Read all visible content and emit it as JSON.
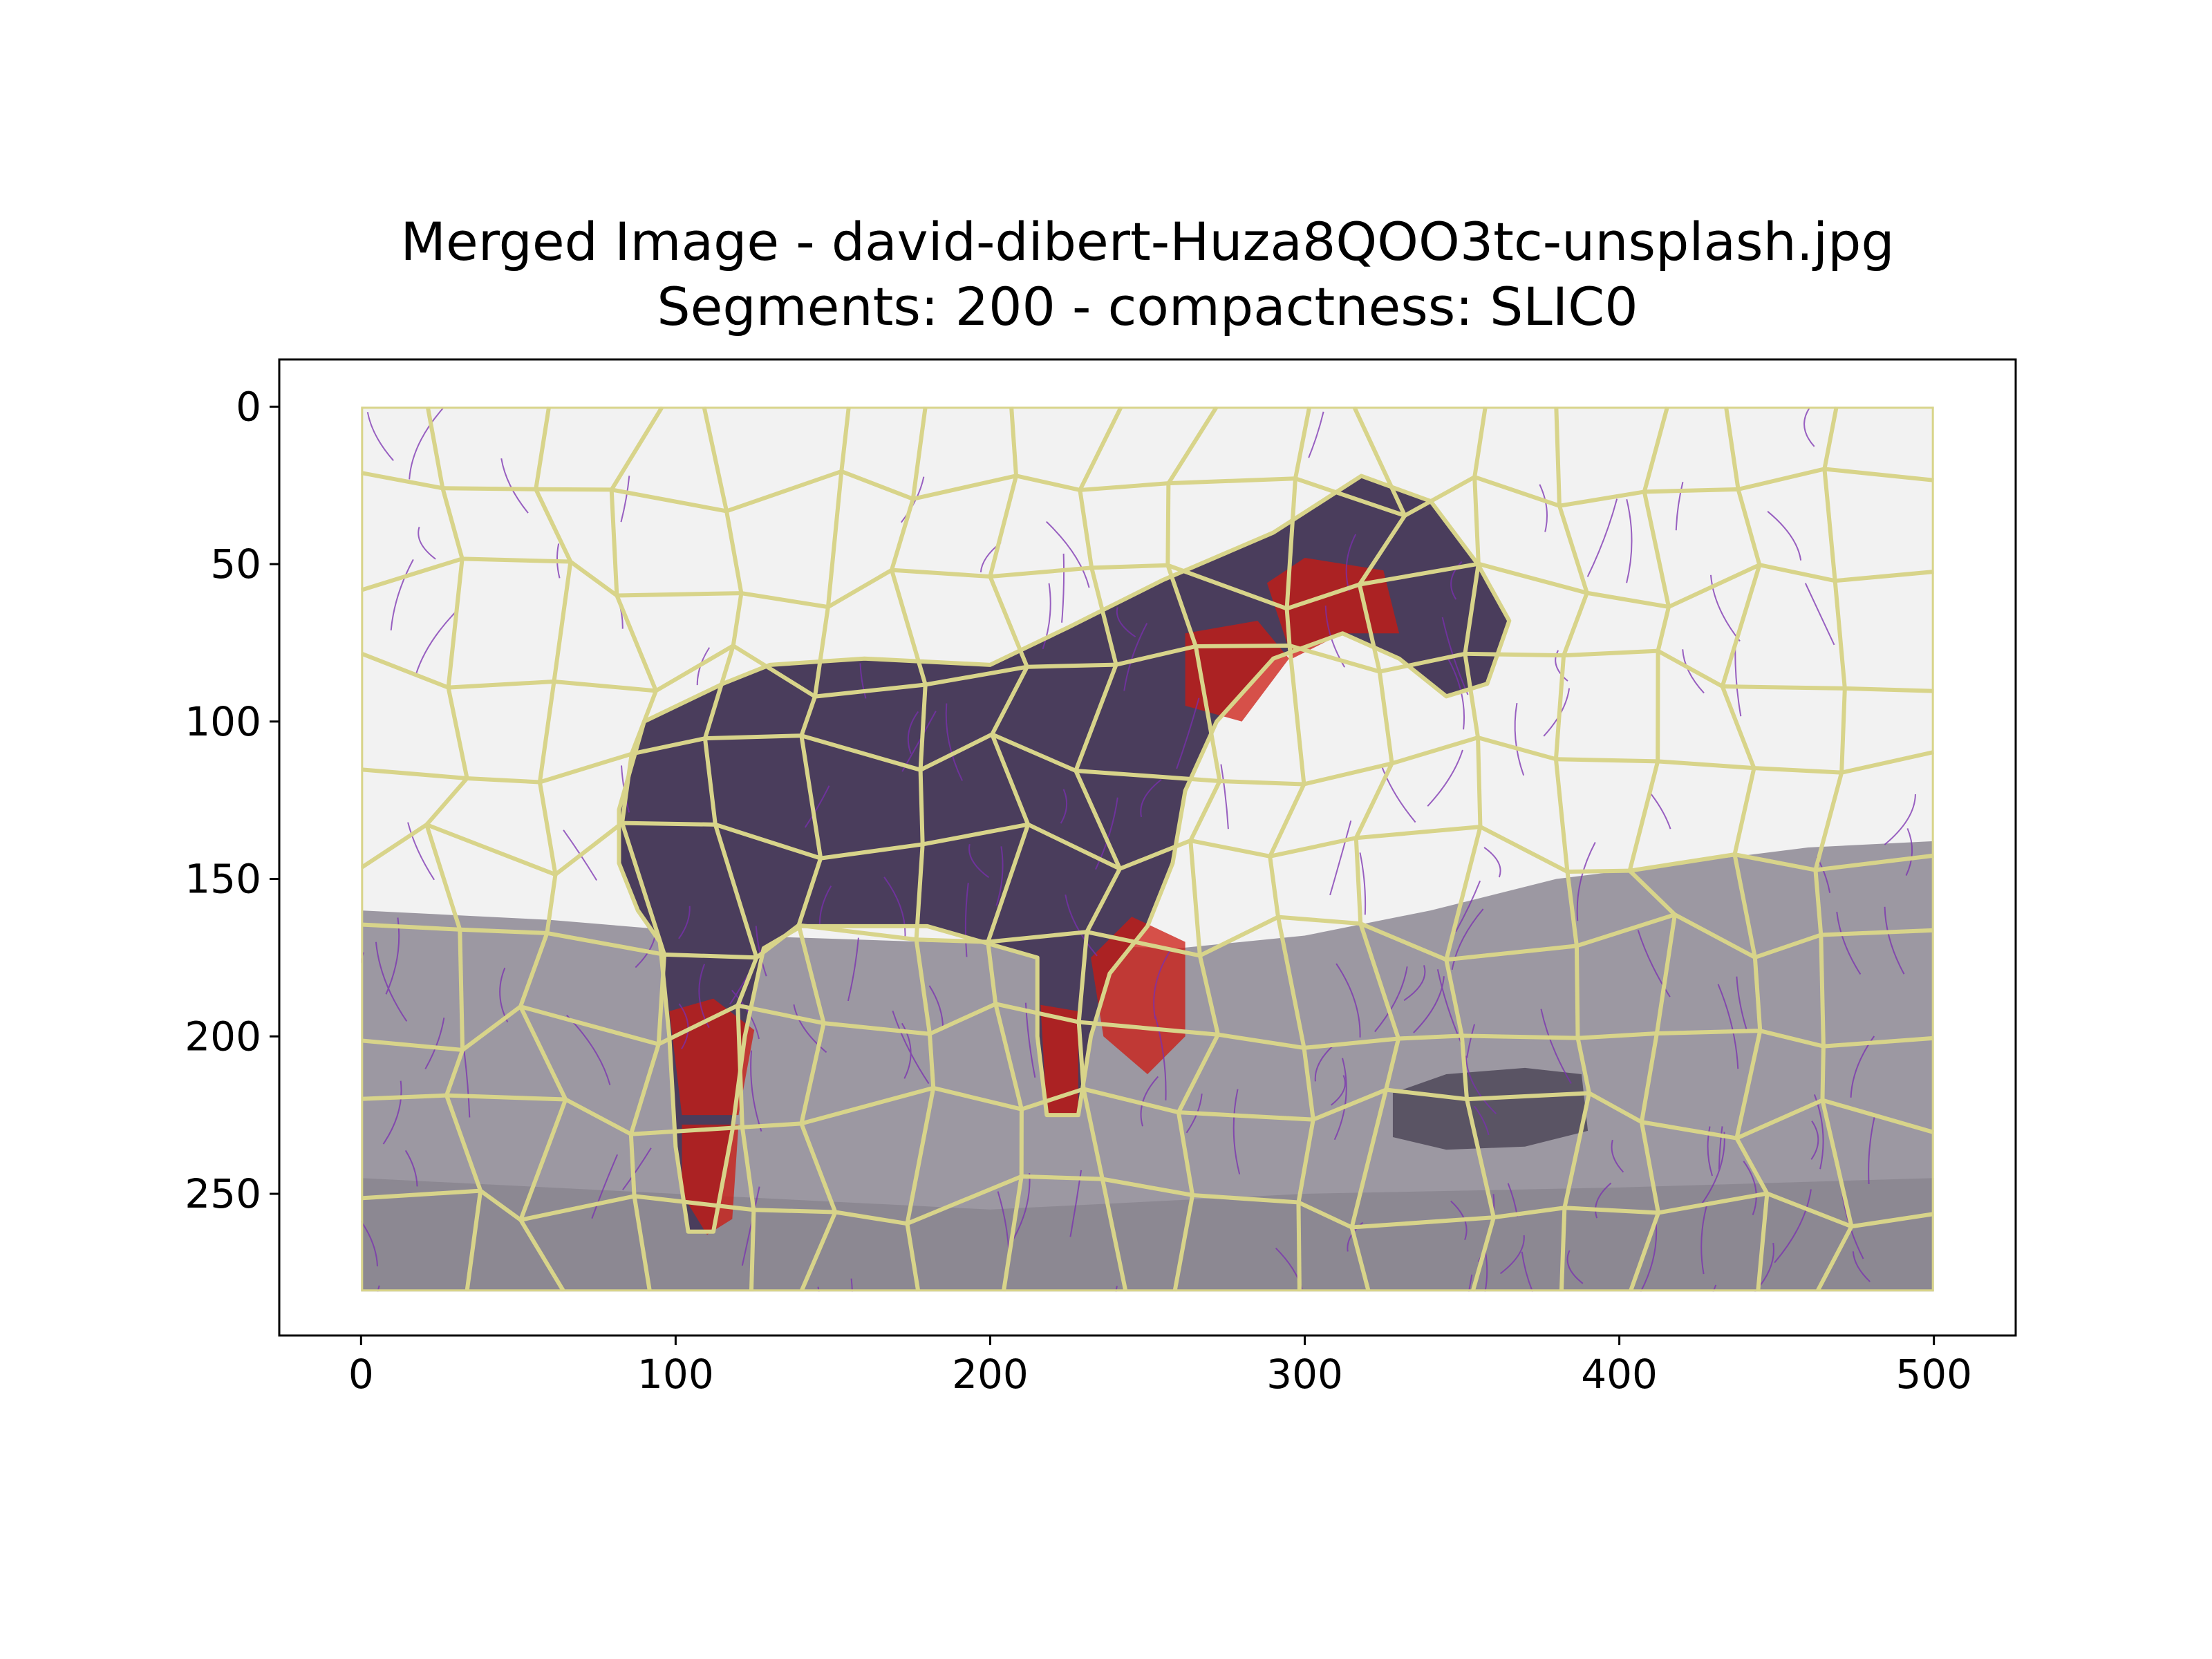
{
  "chart_data": {
    "type": "heatmap",
    "title_line1": "Merged Image - david-dibert-Huza8QOO3tc-unsplash.jpg",
    "title_line2": "Segments: 200 - compactness: SLIC0",
    "xlabel": "",
    "ylabel": "",
    "image_extent": {
      "x": [
        0,
        500
      ],
      "y": [
        0,
        281
      ]
    },
    "xlim": [
      -26,
      526
    ],
    "ylim": [
      295,
      -15
    ],
    "xticks": [
      0,
      100,
      200,
      300,
      400,
      500
    ],
    "yticks": [
      0,
      50,
      100,
      150,
      200,
      250
    ],
    "grid": false,
    "colors": {
      "boundary": "#d8d48a",
      "streamline": "#7a2fb0",
      "highlight": "#cc1a10",
      "sky": "#f2f2f2",
      "horse": "#4a3d5c",
      "ground": "#9c98a2"
    }
  }
}
